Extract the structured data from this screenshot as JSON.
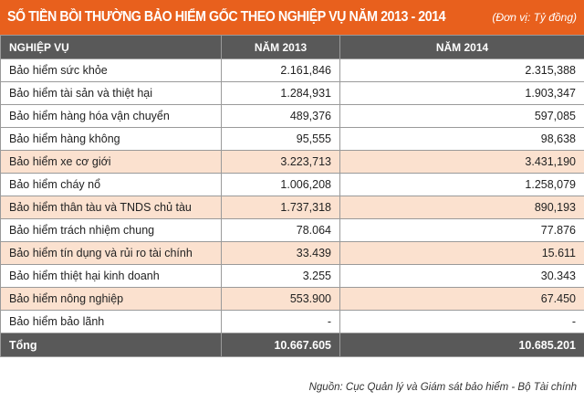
{
  "title": "SỐ TIỀN BỒI THƯỜNG BẢO HIỂM GỐC THEO NGHIỆP VỤ NĂM 2013 - 2014",
  "unit": "(Đơn vị: Tỷ đồng)",
  "table": {
    "headers": [
      "NGHIỆP VỤ",
      "NĂM 2013",
      "NĂM 2014"
    ],
    "rows": [
      {
        "label": "Bảo hiểm sức khỏe",
        "y2013": "2.161,846",
        "y2014": "2.315,388"
      },
      {
        "label": "Bảo hiểm tài sản và thiệt hại",
        "y2013": "1.284,931",
        "y2014": "1.903,347"
      },
      {
        "label": "Bảo hiểm hàng hóa vận chuyển",
        "y2013": "489,376",
        "y2014": "597,085"
      },
      {
        "label": "Bảo hiểm hàng không",
        "y2013": "95,555",
        "y2014": "98,638"
      },
      {
        "label": "Bảo hiểm xe cơ giới",
        "y2013": "3.223,713",
        "y2014": "3.431,190"
      },
      {
        "label": "Bảo hiểm cháy nổ",
        "y2013": "1.006,208",
        "y2014": "1.258,079"
      },
      {
        "label": "Bảo hiểm thân tàu và TNDS chủ tàu",
        "y2013": "1.737,318",
        "y2014": "890,193"
      },
      {
        "label": "Bảo hiểm trách nhiệm chung",
        "y2013": "78.064",
        "y2014": "77.876"
      },
      {
        "label": "Bảo hiểm tín dụng và rủi ro tài chính",
        "y2013": "33.439",
        "y2014": "15.611"
      },
      {
        "label": "Bảo hiểm thiệt hại kinh doanh",
        "y2013": "3.255",
        "y2014": "30.343"
      },
      {
        "label": "Bảo hiểm nông nghiệp",
        "y2013": "553.900",
        "y2014": "67.450"
      },
      {
        "label": "Bảo hiểm bảo lãnh",
        "y2013": "-",
        "y2014": "-"
      }
    ],
    "total": {
      "label": "Tổng",
      "y2013": "10.667.605",
      "y2014": "10.685.201"
    }
  },
  "source": "Nguồn: Cục Quản lý và Giám sát bảo hiểm - Bộ Tài chính",
  "colors": {
    "title_bar": "#e8601d",
    "header_row": "#595959",
    "alt_row": "#fbe1cf"
  }
}
